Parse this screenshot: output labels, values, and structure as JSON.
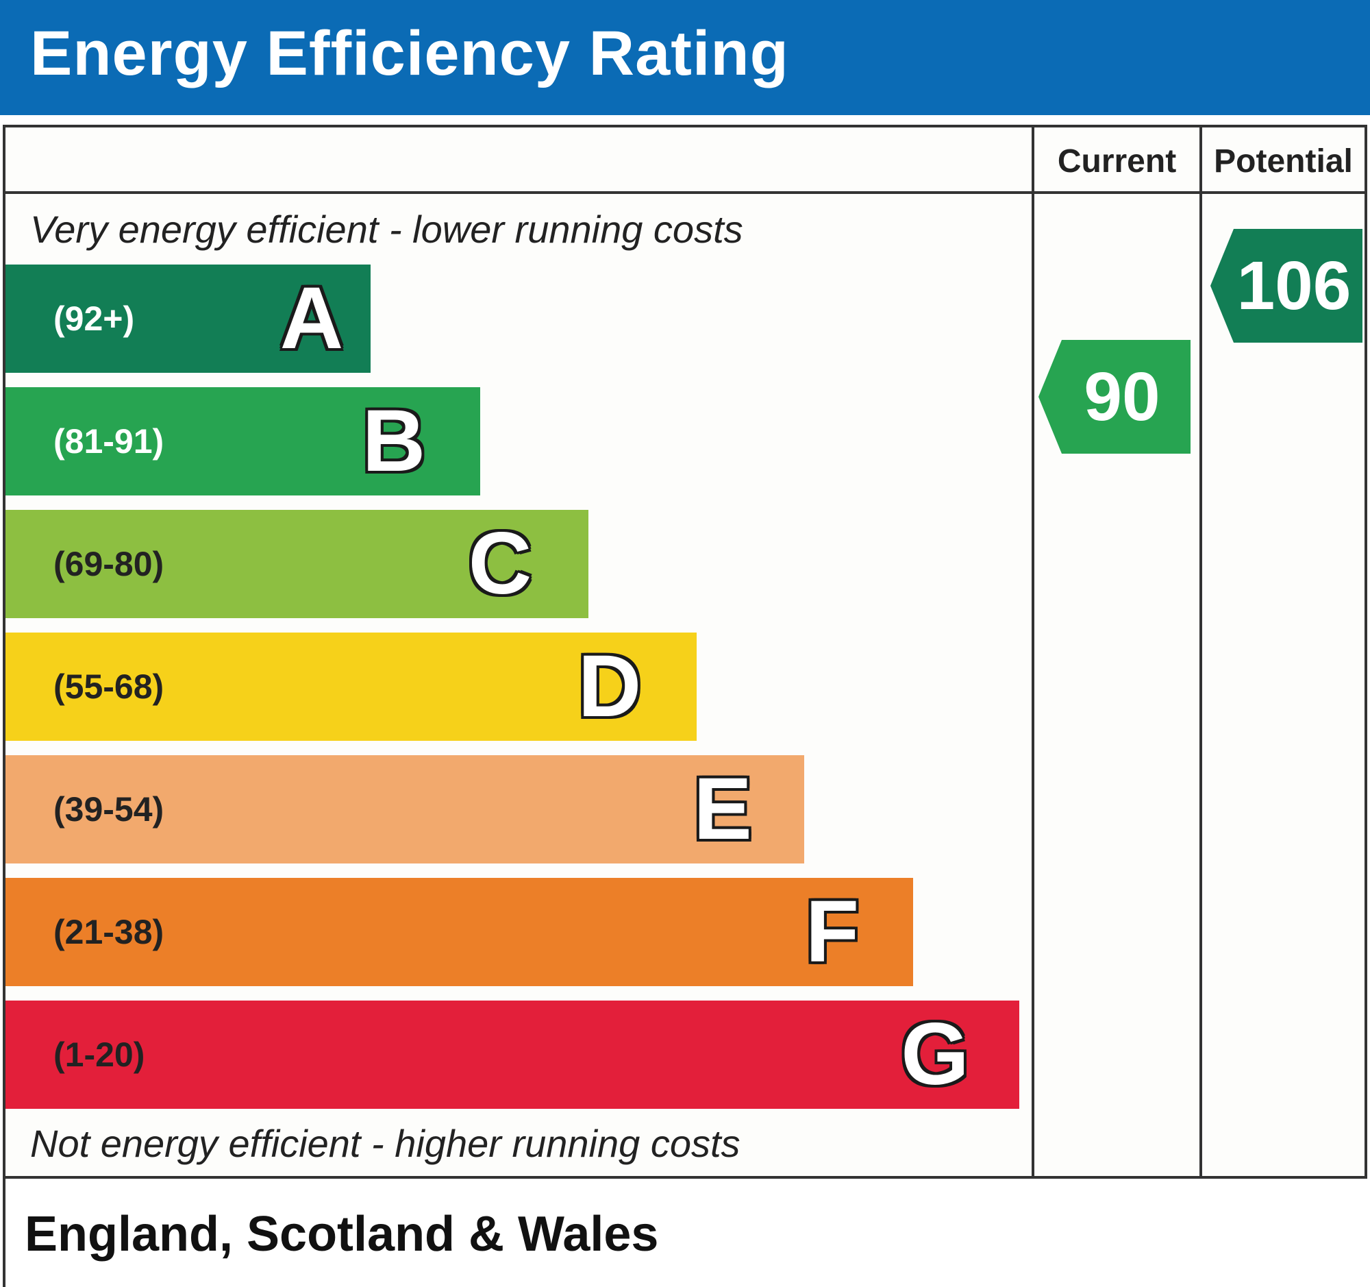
{
  "title": "Energy Efficiency Rating",
  "columns": {
    "current": "Current",
    "potential": "Potential"
  },
  "captions": {
    "top": "Very energy efficient - lower running costs",
    "bottom": "Not energy efficient - higher running costs"
  },
  "region": "England, Scotland & Wales",
  "chart_data": {
    "type": "bar",
    "bands": [
      {
        "letter": "A",
        "range": "(92+)",
        "color": "#127e55",
        "text_color": "#ffffff"
      },
      {
        "letter": "B",
        "range": "(81-91)",
        "color": "#27a451",
        "text_color": "#ffffff"
      },
      {
        "letter": "C",
        "range": "(69-80)",
        "color": "#8dbf41",
        "text_color": "#222222"
      },
      {
        "letter": "D",
        "range": "(55-68)",
        "color": "#f6d11a",
        "text_color": "#222222"
      },
      {
        "letter": "E",
        "range": "(39-54)",
        "color": "#f2a96d",
        "text_color": "#222222"
      },
      {
        "letter": "F",
        "range": "(21-38)",
        "color": "#ec7f28",
        "text_color": "#222222"
      },
      {
        "letter": "G",
        "range": "(1-20)",
        "color": "#e31f3a",
        "text_color": "#222222"
      }
    ],
    "current": {
      "value": "90",
      "band": "B",
      "color": "#27a451"
    },
    "potential": {
      "value": "106",
      "band": "A",
      "color": "#127e55"
    }
  }
}
